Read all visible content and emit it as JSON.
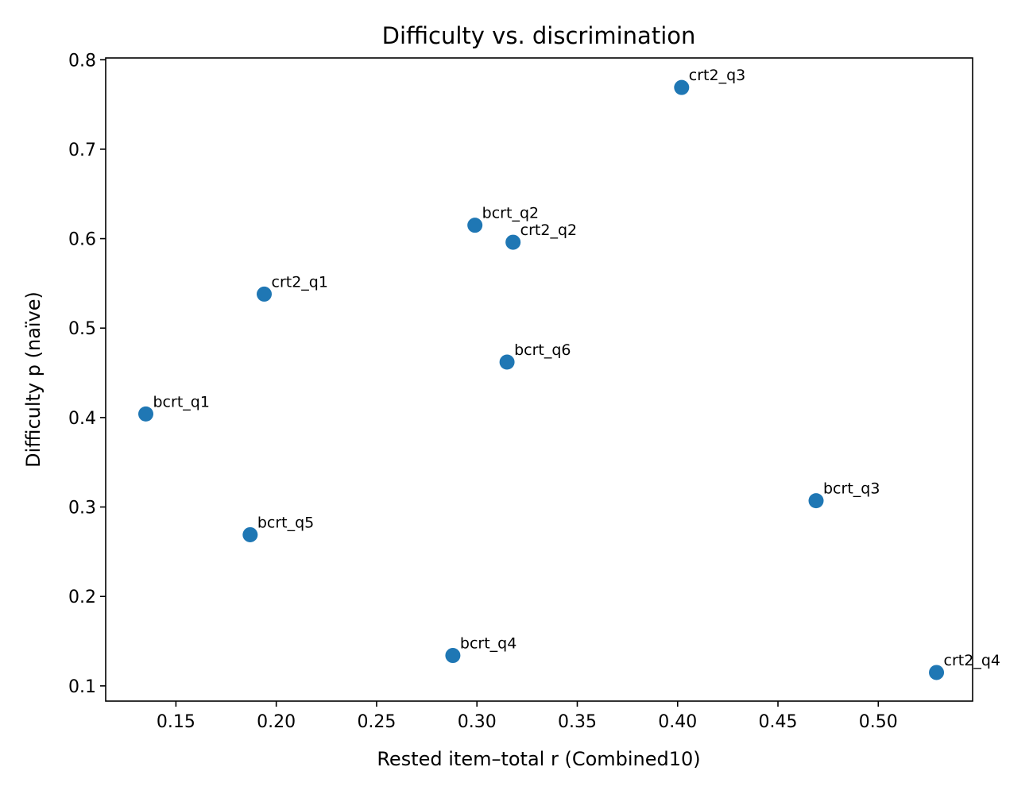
{
  "chart_data": {
    "type": "scatter",
    "title": "Difficulty vs. discrimination",
    "xlabel": "Rested item–total r (Combined10)",
    "ylabel": "Difficulty p (naïve)",
    "xlim": [
      0.115,
      0.547
    ],
    "ylim": [
      0.083,
      0.802
    ],
    "x_ticks": [
      0.15,
      0.2,
      0.25,
      0.3,
      0.35,
      0.4,
      0.45,
      0.5
    ],
    "x_tick_labels": [
      "0.15",
      "0.20",
      "0.25",
      "0.30",
      "0.35",
      "0.40",
      "0.45",
      "0.50"
    ],
    "y_ticks": [
      0.1,
      0.2,
      0.3,
      0.4,
      0.5,
      0.6,
      0.7,
      0.8
    ],
    "y_tick_labels": [
      "0.1",
      "0.2",
      "0.3",
      "0.4",
      "0.5",
      "0.6",
      "0.7",
      "0.8"
    ],
    "grid": false,
    "marker_color": "#1f77b4",
    "points": [
      {
        "label": "crt2_q3",
        "x": 0.402,
        "y": 0.769
      },
      {
        "label": "bcrt_q2",
        "x": 0.299,
        "y": 0.615
      },
      {
        "label": "crt2_q2",
        "x": 0.318,
        "y": 0.596
      },
      {
        "label": "crt2_q1",
        "x": 0.194,
        "y": 0.538
      },
      {
        "label": "bcrt_q6",
        "x": 0.315,
        "y": 0.462
      },
      {
        "label": "bcrt_q1",
        "x": 0.135,
        "y": 0.404
      },
      {
        "label": "bcrt_q3",
        "x": 0.469,
        "y": 0.307
      },
      {
        "label": "bcrt_q5",
        "x": 0.187,
        "y": 0.269
      },
      {
        "label": "bcrt_q4",
        "x": 0.288,
        "y": 0.134
      },
      {
        "label": "crt2_q4",
        "x": 0.529,
        "y": 0.115
      }
    ]
  }
}
